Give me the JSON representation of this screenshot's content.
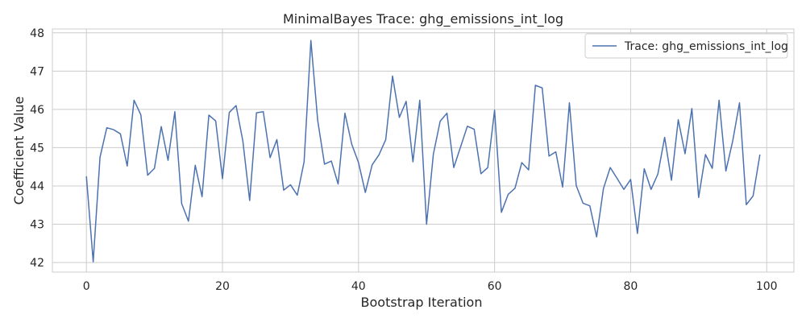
{
  "chart_data": {
    "type": "line",
    "title": "MinimalBayes Trace: ghg_emissions_int_log",
    "xlabel": "Bootstrap Iteration",
    "ylabel": "Coefficient Value",
    "xlim": [
      -5,
      104
    ],
    "ylim": [
      41.75,
      48.1
    ],
    "xticks": [
      0,
      20,
      40,
      60,
      80,
      100
    ],
    "yticks": [
      42,
      43,
      44,
      45,
      46,
      47,
      48
    ],
    "grid": true,
    "legend_position": "top-right",
    "series": [
      {
        "name": "Trace: ghg_emissions_int_log",
        "color": "#4c72b0",
        "x": [
          0,
          1,
          2,
          3,
          4,
          5,
          6,
          7,
          8,
          9,
          10,
          11,
          12,
          13,
          14,
          15,
          16,
          17,
          18,
          19,
          20,
          21,
          22,
          23,
          24,
          25,
          26,
          27,
          28,
          29,
          30,
          31,
          32,
          33,
          34,
          35,
          36,
          37,
          38,
          39,
          40,
          41,
          42,
          43,
          44,
          45,
          46,
          47,
          48,
          49,
          50,
          51,
          52,
          53,
          54,
          55,
          56,
          57,
          58,
          59,
          60,
          61,
          62,
          63,
          64,
          65,
          66,
          67,
          68,
          69,
          70,
          71,
          72,
          73,
          74,
          75,
          76,
          77,
          78,
          79,
          80,
          81,
          82,
          83,
          84,
          85,
          86,
          87,
          88,
          89,
          90,
          91,
          92,
          93,
          94,
          95,
          96,
          97,
          98,
          99
        ],
        "values": [
          44.25,
          42.02,
          44.75,
          45.52,
          45.47,
          45.36,
          44.52,
          46.24,
          45.86,
          44.28,
          44.46,
          45.55,
          44.67,
          45.94,
          43.54,
          43.08,
          44.54,
          43.72,
          45.85,
          45.7,
          44.19,
          45.92,
          46.1,
          45.17,
          43.62,
          45.91,
          45.94,
          44.74,
          45.21,
          43.89,
          44.03,
          43.76,
          44.63,
          47.8,
          45.71,
          44.57,
          44.65,
          44.05,
          45.9,
          45.09,
          44.61,
          43.83,
          44.55,
          44.81,
          45.21,
          46.87,
          45.79,
          46.21,
          44.63,
          46.24,
          43.0,
          44.83,
          45.69,
          45.9,
          44.48,
          45.02,
          45.56,
          45.48,
          44.32,
          44.48,
          45.98,
          43.31,
          43.78,
          43.94,
          44.61,
          44.42,
          46.63,
          46.56,
          44.78,
          44.89,
          43.97,
          46.17,
          44.01,
          43.55,
          43.48,
          42.67,
          43.93,
          44.48,
          44.2,
          43.91,
          44.17,
          42.76,
          44.45,
          43.91,
          44.31,
          45.27,
          44.15,
          45.73,
          44.84,
          46.02,
          43.7,
          44.82,
          44.46,
          46.24,
          44.39,
          45.17,
          46.17,
          43.51,
          43.74,
          44.82
        ]
      }
    ]
  }
}
